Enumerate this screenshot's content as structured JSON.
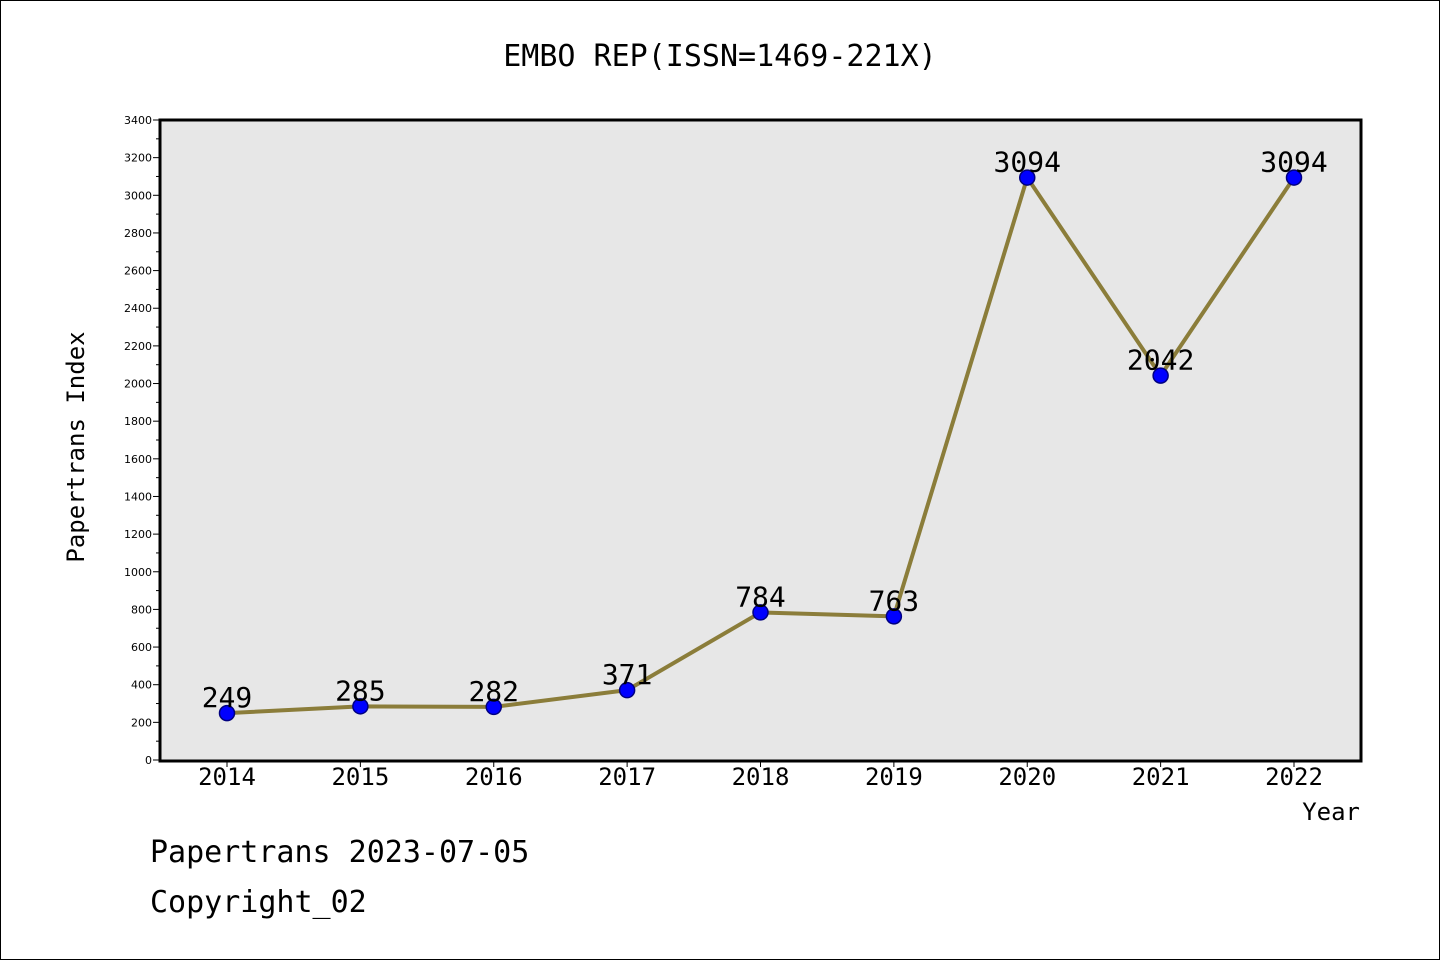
{
  "chart_data": {
    "type": "line",
    "title": "EMBO REP(ISSN=1469-221X)",
    "xlabel": "Year",
    "ylabel": "Papertrans Index",
    "categories": [
      "2014",
      "2015",
      "2016",
      "2017",
      "2018",
      "2019",
      "2020",
      "2021",
      "2022"
    ],
    "values": [
      249,
      285,
      282,
      371,
      784,
      763,
      3094,
      2042,
      3094
    ],
    "data_labels": [
      "249",
      "285",
      "282",
      "371",
      "784",
      "763",
      "3094",
      "2042",
      "3094"
    ],
    "ylim": [
      0,
      3400
    ],
    "y_ticks": [
      "0",
      "200",
      "400",
      "600",
      "800",
      "1000",
      "1200",
      "1400",
      "1600",
      "1800",
      "2000",
      "2200",
      "2400",
      "2600",
      "2800",
      "3000",
      "3200",
      "3400"
    ],
    "grid": false,
    "colors": {
      "line": "#8B7D3A",
      "marker_fill": "#0000FF",
      "marker_edge": "#000080",
      "plot_background": "#E7E7E7"
    }
  },
  "footer": {
    "line1": "Papertrans 2023-07-05",
    "line2": "Copyright_02"
  }
}
